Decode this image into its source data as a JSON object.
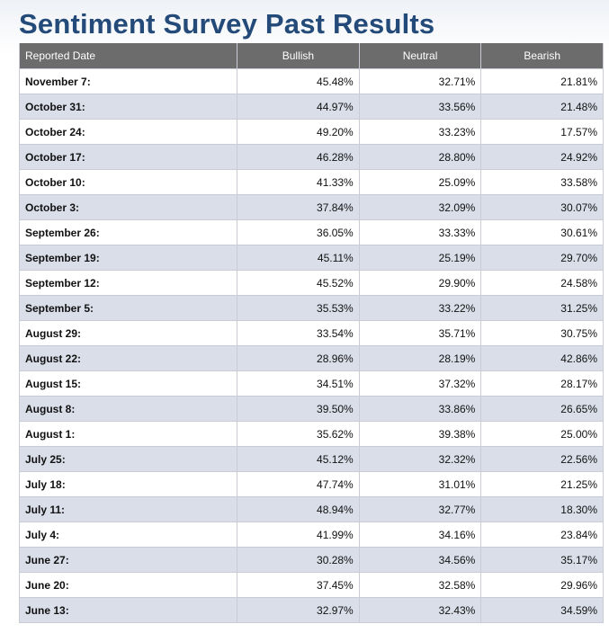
{
  "page": {
    "title": "Sentiment Survey Past Results"
  },
  "table": {
    "headers": [
      "Reported Date",
      "Bullish",
      "Neutral",
      "Bearish"
    ],
    "rows": [
      {
        "date": "November 7:",
        "bullish": "45.48%",
        "neutral": "32.71%",
        "bearish": "21.81%"
      },
      {
        "date": "October 31:",
        "bullish": "44.97%",
        "neutral": "33.56%",
        "bearish": "21.48%"
      },
      {
        "date": "October 24:",
        "bullish": "49.20%",
        "neutral": "33.23%",
        "bearish": "17.57%"
      },
      {
        "date": "October 17:",
        "bullish": "46.28%",
        "neutral": "28.80%",
        "bearish": "24.92%"
      },
      {
        "date": "October 10:",
        "bullish": "41.33%",
        "neutral": "25.09%",
        "bearish": "33.58%"
      },
      {
        "date": "October 3:",
        "bullish": "37.84%",
        "neutral": "32.09%",
        "bearish": "30.07%"
      },
      {
        "date": "September 26:",
        "bullish": "36.05%",
        "neutral": "33.33%",
        "bearish": "30.61%"
      },
      {
        "date": "September 19:",
        "bullish": "45.11%",
        "neutral": "25.19%",
        "bearish": "29.70%"
      },
      {
        "date": "September 12:",
        "bullish": "45.52%",
        "neutral": "29.90%",
        "bearish": "24.58%"
      },
      {
        "date": "September 5:",
        "bullish": "35.53%",
        "neutral": "33.22%",
        "bearish": "31.25%"
      },
      {
        "date": "August 29:",
        "bullish": "33.54%",
        "neutral": "35.71%",
        "bearish": "30.75%"
      },
      {
        "date": "August 22:",
        "bullish": "28.96%",
        "neutral": "28.19%",
        "bearish": "42.86%"
      },
      {
        "date": "August 15:",
        "bullish": "34.51%",
        "neutral": "37.32%",
        "bearish": "28.17%"
      },
      {
        "date": "August 8:",
        "bullish": "39.50%",
        "neutral": "33.86%",
        "bearish": "26.65%"
      },
      {
        "date": "August 1:",
        "bullish": "35.62%",
        "neutral": "39.38%",
        "bearish": "25.00%"
      },
      {
        "date": "July 25:",
        "bullish": "45.12%",
        "neutral": "32.32%",
        "bearish": "22.56%"
      },
      {
        "date": "July 18:",
        "bullish": "47.74%",
        "neutral": "31.01%",
        "bearish": "21.25%"
      },
      {
        "date": "July 11:",
        "bullish": "48.94%",
        "neutral": "32.77%",
        "bearish": "18.30%"
      },
      {
        "date": "July 4:",
        "bullish": "41.99%",
        "neutral": "34.16%",
        "bearish": "23.84%"
      },
      {
        "date": "June 27:",
        "bullish": "30.28%",
        "neutral": "34.56%",
        "bearish": "35.17%"
      },
      {
        "date": "June 20:",
        "bullish": "37.45%",
        "neutral": "32.58%",
        "bearish": "29.96%"
      },
      {
        "date": "June 13:",
        "bullish": "32.97%",
        "neutral": "32.43%",
        "bearish": "34.59%"
      }
    ]
  },
  "colors": {
    "title": "#234a78",
    "header_bg": "#6c6c6c",
    "row_alt_bg": "#d9dee9",
    "border": "#c9ccd4"
  }
}
